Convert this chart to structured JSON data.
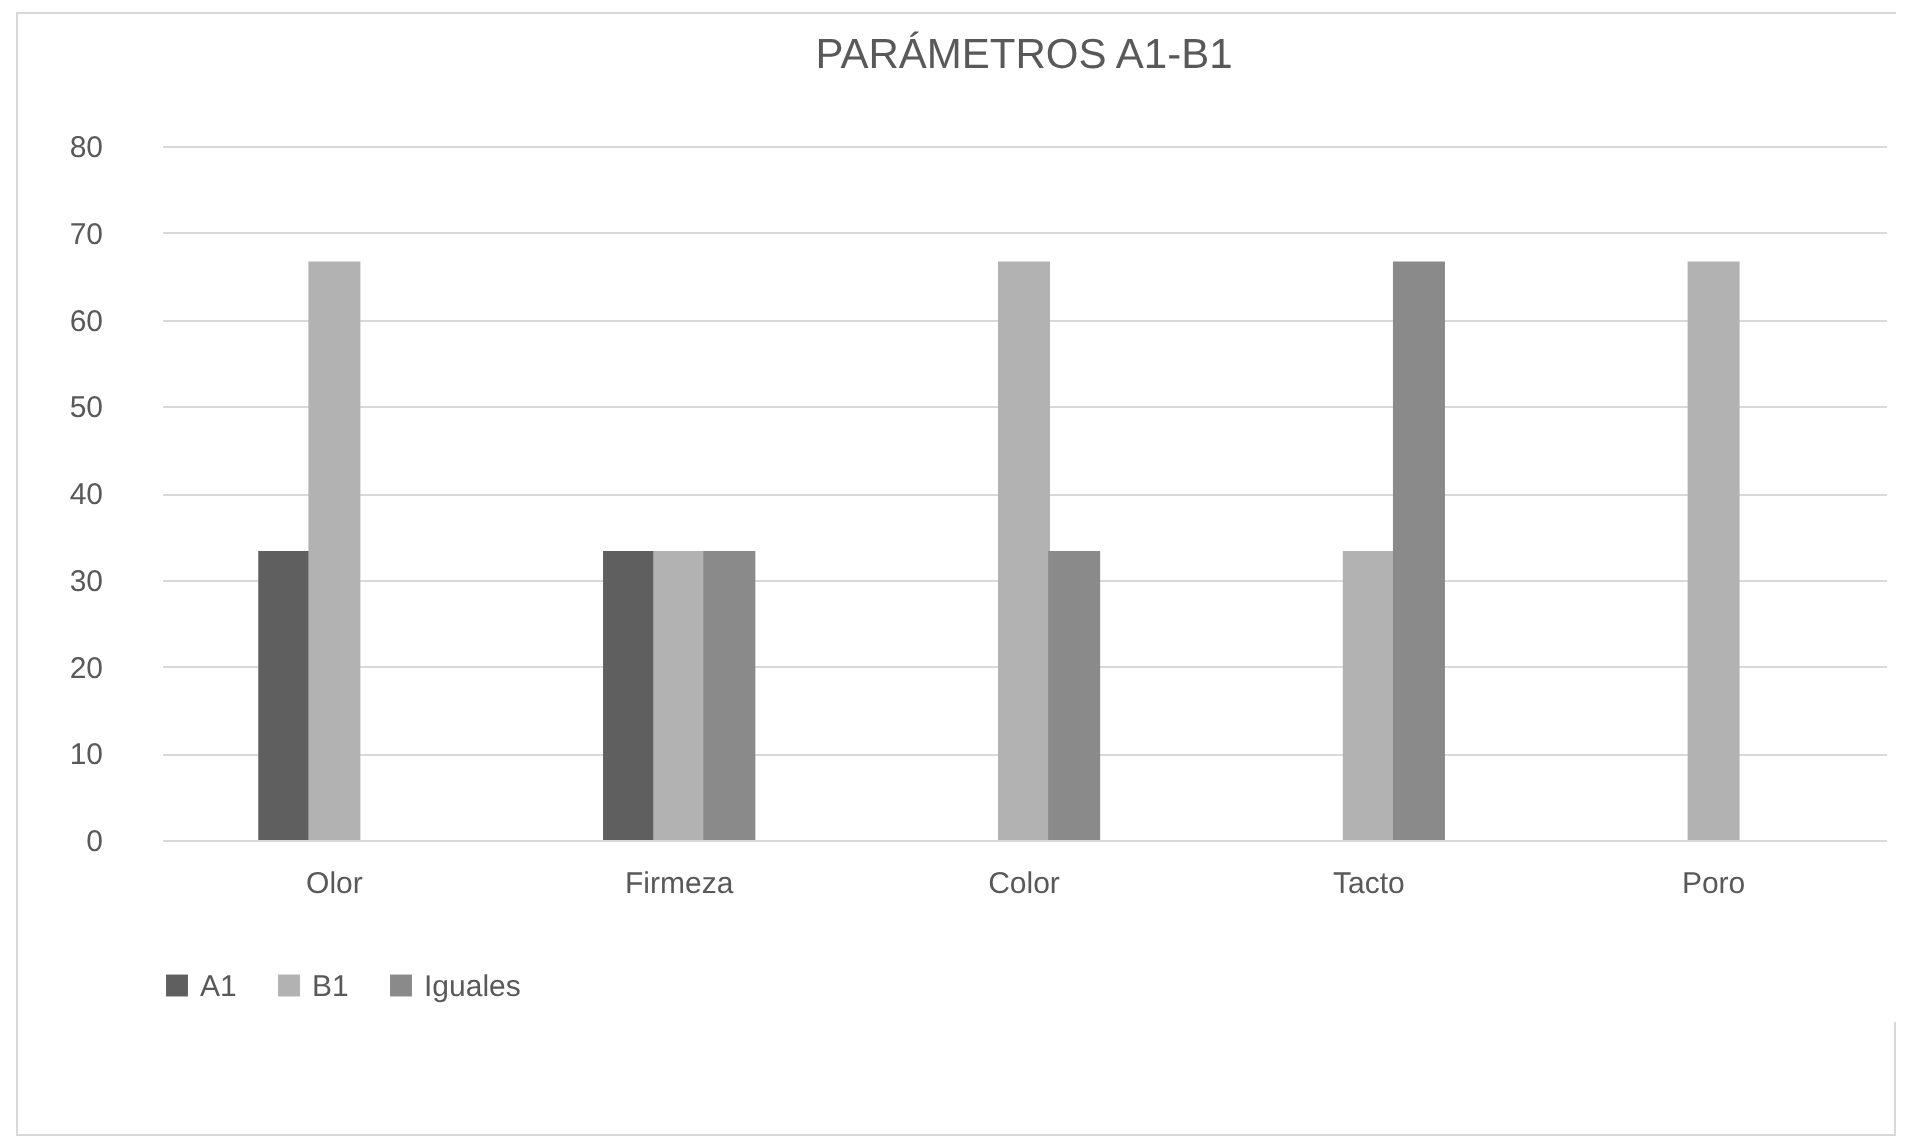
{
  "chart_data": {
    "type": "bar",
    "title": "PARÁMETROS A1-B1",
    "categories": [
      "Olor",
      "Firmeza",
      "Color",
      "Tacto",
      "Poro"
    ],
    "series": [
      {
        "name": "A1",
        "color": "#5f5f5f",
        "values": [
          33.3,
          33.3,
          0,
          0,
          0
        ]
      },
      {
        "name": "B1",
        "color": "#b2b2b2",
        "values": [
          66.7,
          33.3,
          66.7,
          33.3,
          66.7
        ]
      },
      {
        "name": "Iguales",
        "color": "#8a8a8a",
        "values": [
          0,
          33.3,
          33.3,
          66.7,
          0
        ]
      }
    ],
    "ylim": [
      0,
      80
    ],
    "yticks": [
      0,
      10,
      20,
      30,
      40,
      50,
      60,
      70,
      80
    ],
    "grid": true,
    "legend": "bottom"
  }
}
